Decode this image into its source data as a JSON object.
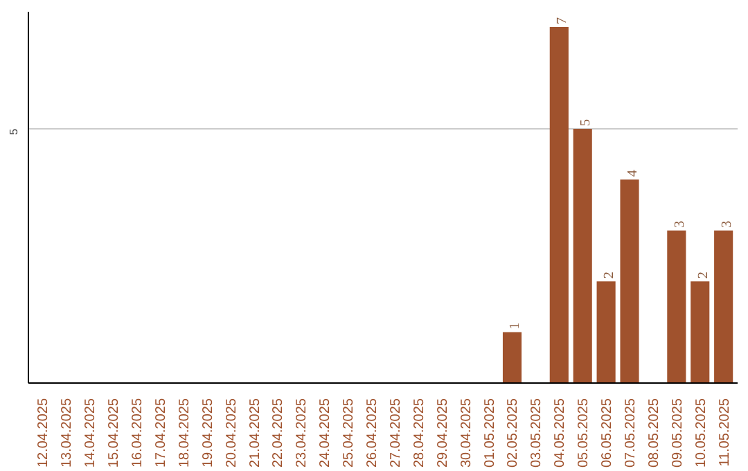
{
  "chart_data": {
    "type": "bar",
    "categories": [
      "12.04.2025",
      "13.04.2025",
      "14.04.2025",
      "15.04.2025",
      "16.04.2025",
      "17.04.2025",
      "18.04.2025",
      "19.04.2025",
      "20.04.2025",
      "21.04.2025",
      "22.04.2025",
      "23.04.2025",
      "24.04.2025",
      "25.04.2025",
      "26.04.2025",
      "27.04.2025",
      "28.04.2025",
      "29.04.2025",
      "30.04.2025",
      "01.05.2025",
      "02.05.2025",
      "03.05.2025",
      "04.05.2025",
      "05.05.2025",
      "06.05.2025",
      "07.05.2025",
      "08.05.2025",
      "09.05.2025",
      "10.05.2025",
      "11.05.2025"
    ],
    "values": [
      null,
      null,
      null,
      null,
      null,
      null,
      null,
      null,
      null,
      null,
      null,
      null,
      null,
      null,
      null,
      null,
      null,
      null,
      null,
      null,
      1,
      null,
      7,
      5,
      2,
      4,
      null,
      3,
      2,
      3
    ],
    "data_labels": true,
    "color": "#a0522d",
    "ylim": [
      0,
      7.3
    ],
    "ref_lines": [
      {
        "axis": "y",
        "value": 5,
        "label": "5",
        "color": "#cccccc"
      }
    ]
  }
}
